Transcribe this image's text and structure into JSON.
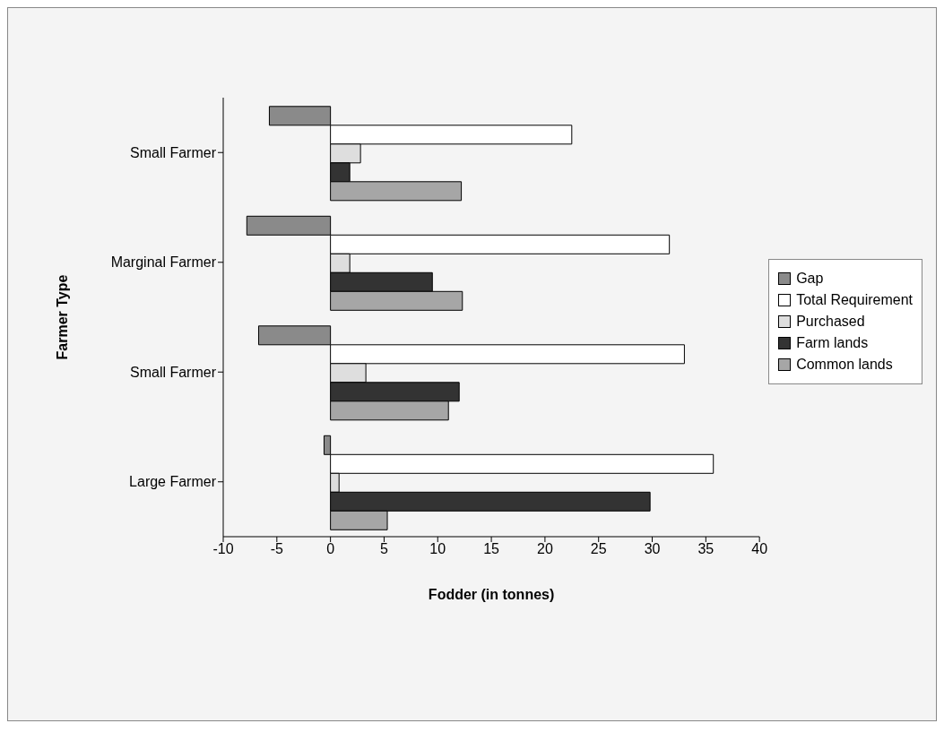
{
  "chart_data": {
    "type": "bar",
    "orientation": "horizontal",
    "xlabel": "Fodder (in tonnes)",
    "ylabel": "Farmer Type",
    "categories": [
      "Small Farmer",
      "Marginal Farmer",
      "Small Farmer",
      "Large Farmer"
    ],
    "series": [
      {
        "name": "Gap",
        "color": "#8a8a8a",
        "values": [
          -5.7,
          -7.8,
          -6.7,
          -0.6
        ]
      },
      {
        "name": "Total Requirement",
        "color": "#ffffff",
        "values": [
          22.5,
          31.6,
          33,
          35.7
        ]
      },
      {
        "name": "Purchased",
        "color": "#dedede",
        "values": [
          2.8,
          1.8,
          3.3,
          0.8
        ]
      },
      {
        "name": "Farm lands",
        "color": "#333333",
        "values": [
          1.8,
          9.5,
          12,
          29.8
        ]
      },
      {
        "name": "Common lands",
        "color": "#a6a6a6",
        "values": [
          12.2,
          12.3,
          11,
          5.3
        ]
      }
    ],
    "xlim": [
      -10,
      40
    ],
    "xticks": [
      -10,
      -5,
      0,
      5,
      10,
      15,
      20,
      25,
      30,
      35,
      40
    ],
    "legend": "right"
  }
}
